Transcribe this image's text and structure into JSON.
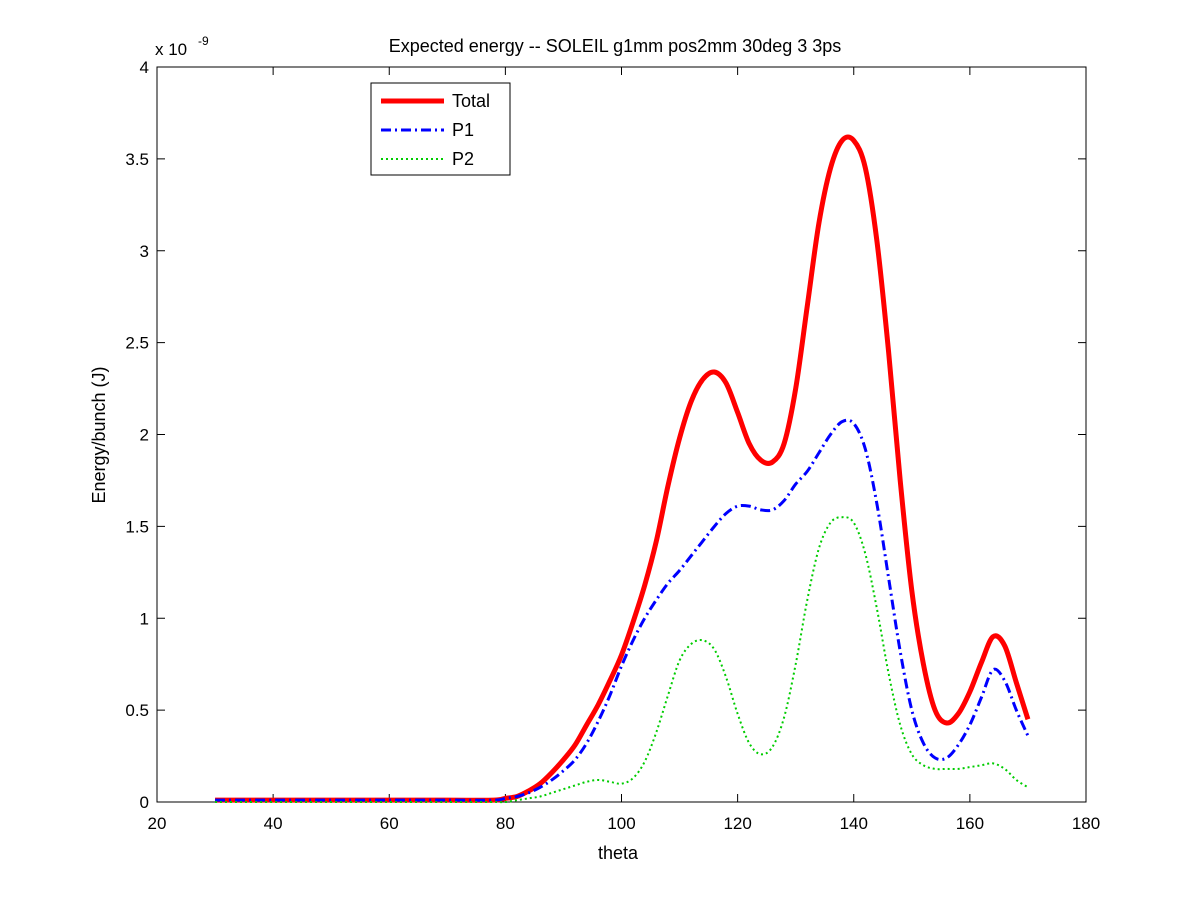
{
  "chart_data": {
    "type": "line",
    "title": "Expected energy -- SOLEIL g1mm pos2mm 30deg 3 3ps",
    "xlabel": "theta",
    "ylabel": "Energy/bunch (J)",
    "xlim": [
      20,
      180
    ],
    "ylim": [
      0,
      4
    ],
    "x_ticks": [
      20,
      40,
      60,
      80,
      100,
      120,
      140,
      160,
      180
    ],
    "x_tick_labels": [
      "20",
      "40",
      "60",
      "80",
      "100",
      "120",
      "140",
      "160",
      "180"
    ],
    "y_ticks": [
      0,
      0.5,
      1,
      1.5,
      2,
      2.5,
      3,
      3.5,
      4
    ],
    "y_tick_labels": [
      "0",
      "0.5",
      "1",
      "1.5",
      "2",
      "2.5",
      "3",
      "3.5",
      "4"
    ],
    "y_exponent_label": "x 10",
    "y_exponent": "-9",
    "grid": false,
    "legend_position": "top-left",
    "x": [
      30,
      40,
      50,
      60,
      70,
      78,
      80,
      82,
      84,
      86,
      88,
      90,
      92,
      94,
      96,
      98,
      100,
      102,
      104,
      106,
      108,
      110,
      112,
      114,
      116,
      118,
      120,
      122,
      124,
      126,
      128,
      130,
      132,
      134,
      136,
      138,
      140,
      142,
      144,
      146,
      148,
      150,
      152,
      154,
      156,
      158,
      160,
      162,
      164,
      166,
      168,
      170
    ],
    "series": [
      {
        "name": "Total",
        "color": "#ff0000",
        "style": "solid",
        "values": [
          0.01,
          0.01,
          0.01,
          0.01,
          0.01,
          0.01,
          0.02,
          0.03,
          0.06,
          0.1,
          0.16,
          0.23,
          0.31,
          0.42,
          0.53,
          0.66,
          0.8,
          0.98,
          1.18,
          1.42,
          1.72,
          1.98,
          2.18,
          2.3,
          2.34,
          2.28,
          2.12,
          1.95,
          1.86,
          1.85,
          1.95,
          2.25,
          2.7,
          3.15,
          3.45,
          3.6,
          3.6,
          3.45,
          3.05,
          2.45,
          1.75,
          1.15,
          0.75,
          0.5,
          0.43,
          0.48,
          0.6,
          0.76,
          0.9,
          0.85,
          0.65,
          0.45
        ]
      },
      {
        "name": "P1",
        "color": "#0000ff",
        "style": "dashdot",
        "values": [
          0.01,
          0.01,
          0.01,
          0.01,
          0.01,
          0.01,
          0.02,
          0.03,
          0.05,
          0.08,
          0.12,
          0.17,
          0.23,
          0.32,
          0.44,
          0.58,
          0.74,
          0.88,
          1.0,
          1.1,
          1.19,
          1.26,
          1.34,
          1.42,
          1.5,
          1.57,
          1.61,
          1.61,
          1.59,
          1.59,
          1.64,
          1.73,
          1.8,
          1.9,
          2.0,
          2.07,
          2.06,
          1.92,
          1.62,
          1.22,
          0.82,
          0.5,
          0.32,
          0.24,
          0.24,
          0.31,
          0.42,
          0.57,
          0.72,
          0.66,
          0.5,
          0.36
        ]
      },
      {
        "name": "P2",
        "color": "#00cc00",
        "style": "dotted",
        "values": [
          0.0,
          0.0,
          0.0,
          0.0,
          0.0,
          0.0,
          0.0,
          0.01,
          0.02,
          0.03,
          0.05,
          0.07,
          0.09,
          0.11,
          0.12,
          0.11,
          0.1,
          0.13,
          0.22,
          0.38,
          0.58,
          0.77,
          0.86,
          0.88,
          0.83,
          0.68,
          0.48,
          0.32,
          0.26,
          0.3,
          0.46,
          0.75,
          1.1,
          1.38,
          1.52,
          1.55,
          1.52,
          1.35,
          1.05,
          0.7,
          0.42,
          0.26,
          0.2,
          0.18,
          0.18,
          0.18,
          0.19,
          0.2,
          0.21,
          0.18,
          0.12,
          0.08
        ]
      }
    ]
  }
}
